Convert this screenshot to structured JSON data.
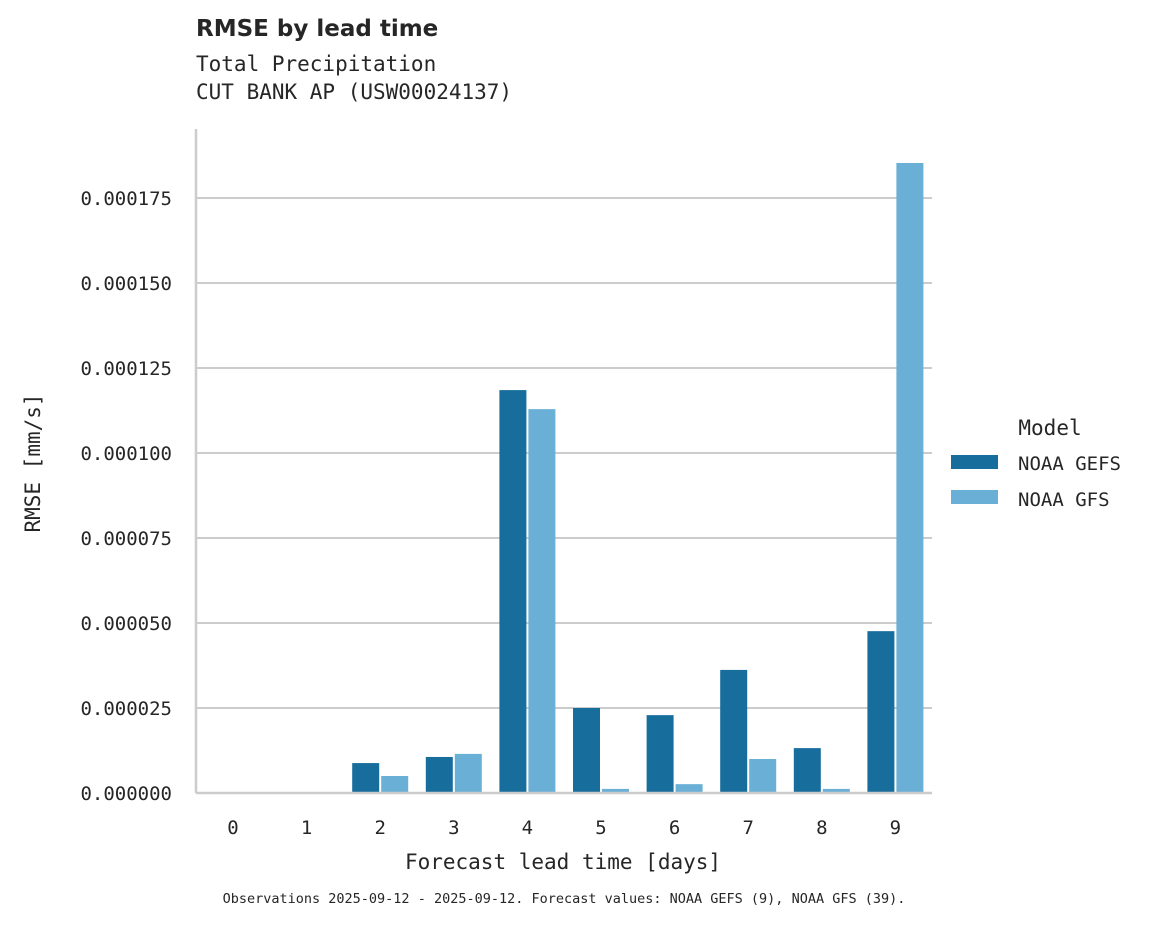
{
  "chart_data": {
    "type": "bar",
    "title": "RMSE by lead time",
    "subtitle_lines": [
      "Total Precipitation",
      "CUT BANK AP (USW00024137)"
    ],
    "xlabel": "Forecast lead time [days]",
    "ylabel": "RMSE [mm/s]",
    "categories": [
      "0",
      "1",
      "2",
      "3",
      "4",
      "5",
      "6",
      "7",
      "8",
      "9"
    ],
    "series": [
      {
        "name": "NOAA GEFS",
        "color": "#176d9c",
        "values": [
          0.0,
          0.0,
          8.8e-06,
          1.06e-05,
          0.0001185,
          2.5e-05,
          2.29e-05,
          3.62e-05,
          1.32e-05,
          4.76e-05
        ]
      },
      {
        "name": "NOAA GFS",
        "color": "#6aafd6",
        "values": [
          0.0,
          0.0,
          5e-06,
          1.15e-05,
          0.0001129,
          1.2e-06,
          2.6e-06,
          1e-05,
          1.2e-06,
          0.0001853
        ]
      }
    ],
    "ylim": [
      0,
      0.000195
    ],
    "yticks": [
      "0.000000",
      "0.000025",
      "0.000050",
      "0.000075",
      "0.000100",
      "0.000125",
      "0.000150",
      "0.000175"
    ],
    "ytick_values": [
      0,
      2.5e-05,
      5e-05,
      7.5e-05,
      0.0001,
      0.000125,
      0.00015,
      0.000175
    ],
    "grid": "horizontal",
    "legend": {
      "title": "Model",
      "position": "right",
      "entries": [
        "NOAA GEFS",
        "NOAA GFS"
      ]
    },
    "footnote": "Observations 2025-09-12 - 2025-09-12. Forecast values: NOAA GEFS (9), NOAA GFS (39)."
  },
  "header": {
    "title": "RMSE by lead time",
    "subtitle_1": "Total Precipitation",
    "subtitle_2": "CUT BANK AP (USW00024137)"
  },
  "footer": {
    "note": "Observations 2025-09-12 - 2025-09-12. Forecast values: NOAA GEFS (9), NOAA GFS (39)."
  }
}
